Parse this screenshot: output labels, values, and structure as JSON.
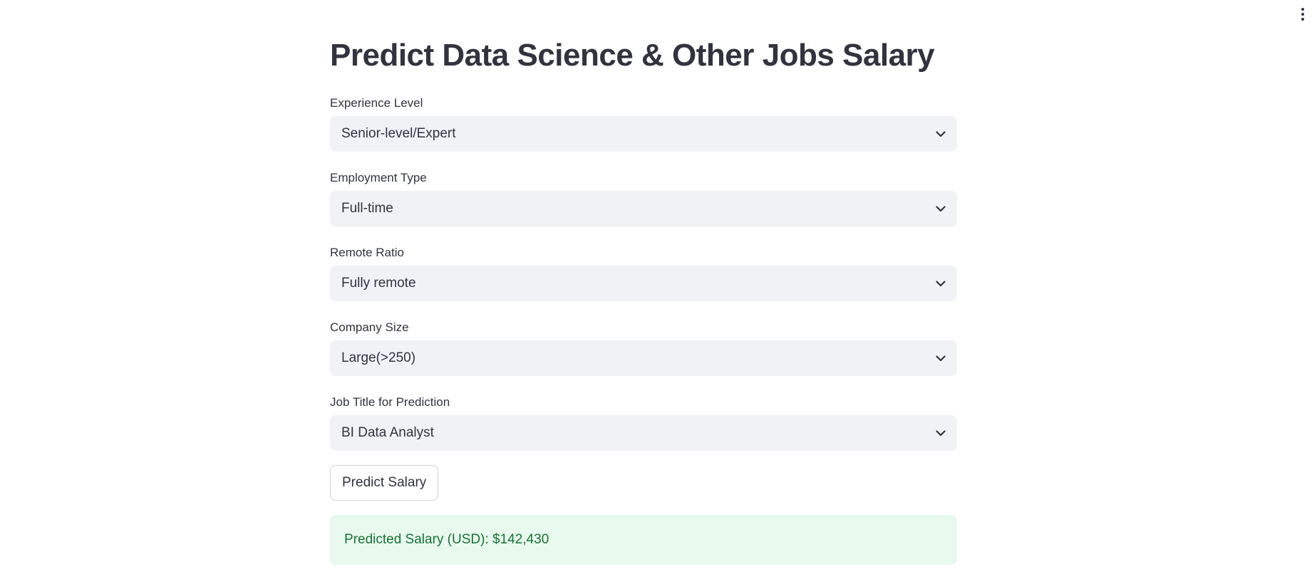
{
  "page": {
    "title": "Predict Data Science & Other Jobs Salary"
  },
  "fields": {
    "experience_level": {
      "label": "Experience Level",
      "value": "Senior-level/Expert"
    },
    "employment_type": {
      "label": "Employment Type",
      "value": "Full-time"
    },
    "remote_ratio": {
      "label": "Remote Ratio",
      "value": "Fully remote"
    },
    "company_size": {
      "label": "Company Size",
      "value": "Large(>250)"
    },
    "job_title": {
      "label": "Job Title for Prediction",
      "value": "BI Data Analyst"
    }
  },
  "actions": {
    "predict_label": "Predict Salary"
  },
  "result": {
    "text": "Predicted Salary (USD): $142,430"
  },
  "icons": {
    "select_arrow": "chevron-down-icon",
    "main_menu": "more-vertical-icon"
  },
  "colors": {
    "text": "#31333f",
    "select_bg": "#f0f2f6",
    "success_bg": "#e8f9ee",
    "success_text": "#177233"
  }
}
